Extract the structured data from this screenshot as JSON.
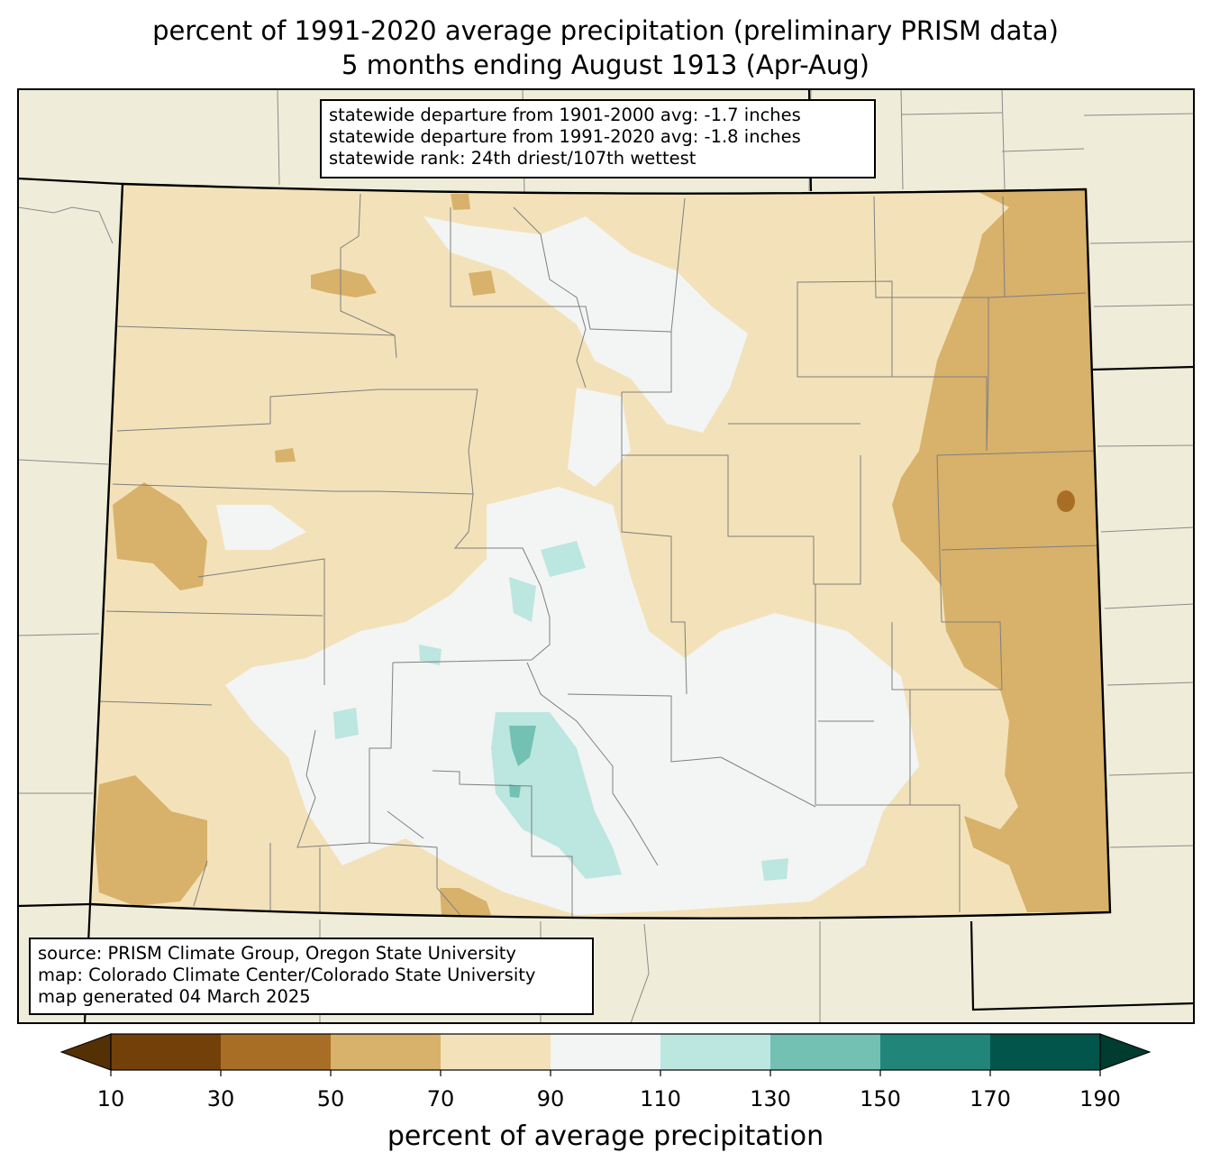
{
  "title": {
    "line1": "percent of 1991-2020 average precipitation (preliminary PRISM data)",
    "line2": "5 months ending August 1913 (Apr-Aug)"
  },
  "stats": {
    "line1": "statewide departure from 1901-2000 avg: -1.7 inches",
    "line2": "statewide departure from 1991-2020 avg: -1.8 inches",
    "line3": "statewide rank: 24th driest/107th wettest"
  },
  "source": {
    "line1": "source: PRISM Climate Group, Oregon State University",
    "line2": "map: Colorado Climate Center/Colorado State University",
    "line3": "map generated 04 March 2025"
  },
  "colorbar": {
    "label": "percent of average precipitation",
    "ticks": [
      "10",
      "30",
      "50",
      "70",
      "90",
      "110",
      "130",
      "150",
      "170",
      "190"
    ],
    "under_color": "#543005",
    "over_color": "#003c30",
    "colors": [
      "#8c510a",
      "#bf812d",
      "#dfc27d",
      "#f6e8c3",
      "#f5f5f5",
      "#c7eae5",
      "#80cdc1",
      "#35978f",
      "#01665e"
    ],
    "bins": [
      {
        "low": 10,
        "high": 30,
        "color": "#734009"
      },
      {
        "low": 30,
        "high": 50,
        "color": "#a96e25"
      },
      {
        "low": 50,
        "high": 70,
        "color": "#d8b16b"
      },
      {
        "low": 70,
        "high": 90,
        "color": "#f3e2b9"
      },
      {
        "low": 90,
        "high": 110,
        "color": "#f3f4f4"
      },
      {
        "low": 110,
        "high": 130,
        "color": "#bce6e0"
      },
      {
        "low": 130,
        "high": 150,
        "color": "#72c1b3"
      },
      {
        "low": 150,
        "high": 170,
        "color": "#218579"
      },
      {
        "low": 170,
        "high": 190,
        "color": "#02554b"
      }
    ]
  },
  "map": {
    "background_color": "#efedd9",
    "state_fill_default": "#f3e2b9"
  }
}
